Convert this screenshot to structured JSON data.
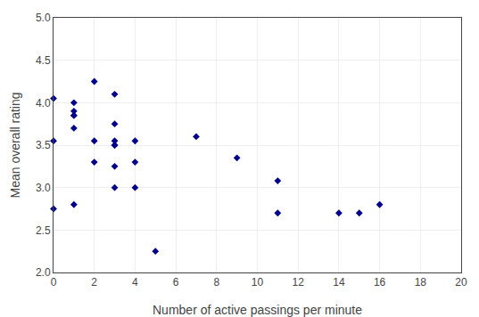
{
  "chart_data": {
    "type": "scatter",
    "x": [
      0,
      0,
      0,
      1,
      1,
      1,
      1,
      1,
      1,
      2,
      2,
      2,
      3,
      3,
      3,
      3,
      3,
      3,
      3,
      4,
      4,
      4,
      5,
      7,
      9,
      11,
      11,
      14,
      15,
      16
    ],
    "values": [
      4.05,
      3.55,
      2.75,
      4.0,
      3.9,
      3.85,
      3.85,
      3.7,
      2.8,
      4.25,
      3.55,
      3.3,
      4.1,
      3.75,
      3.55,
      3.5,
      3.5,
      3.25,
      3.0,
      3.55,
      3.3,
      3.0,
      2.25,
      3.6,
      3.35,
      3.08,
      2.7,
      2.7,
      2.7,
      2.8
    ],
    "xlabel": "Number of active passings per minute",
    "ylabel": "Mean overall rating",
    "xlim": [
      0,
      20
    ],
    "ylim": [
      2.0,
      5.0
    ],
    "xticks": [
      0,
      2,
      4,
      6,
      8,
      10,
      12,
      14,
      16,
      18,
      20
    ],
    "yticks": [
      {
        "value": 2.0,
        "label": "2.0"
      },
      2.5,
      {
        "value": 3.0,
        "label": "3.0"
      },
      3.5,
      {
        "value": 4.0,
        "label": "4.0"
      },
      4.5,
      {
        "value": 5.0,
        "label": "5.0"
      }
    ],
    "color": "#00008B",
    "marker": "diamond",
    "grid": true
  }
}
